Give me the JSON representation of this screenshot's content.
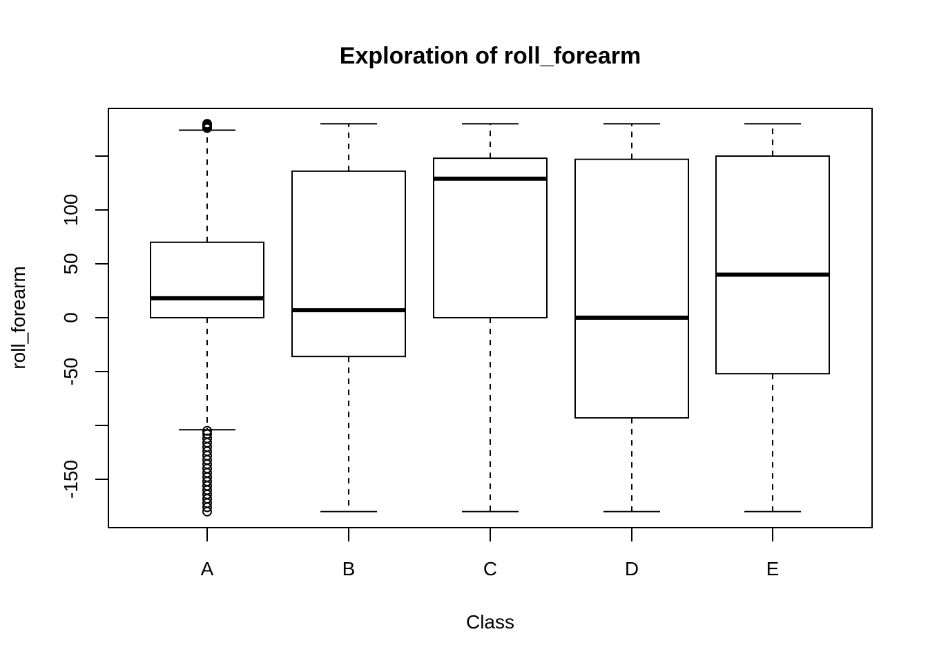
{
  "chart_data": {
    "type": "boxplot",
    "title": "Exploration of  roll_forearm",
    "xlabel": "Class",
    "ylabel": "roll_forearm",
    "ylim": [
      -180,
      180
    ],
    "y_ticks": [
      -150,
      -100,
      -50,
      0,
      50,
      100,
      150
    ],
    "y_tick_labels": [
      "-150",
      "",
      "-50",
      "0",
      "50",
      "100",
      ""
    ],
    "categories": [
      "A",
      "B",
      "C",
      "D",
      "E"
    ],
    "boxes": [
      {
        "category": "A",
        "whisker_low": -104,
        "q1": 0,
        "median": 18,
        "q3": 70,
        "whisker_high": 174,
        "outliers_high": [
          176,
          177,
          178,
          179,
          180
        ],
        "outliers_low": [
          -105,
          -108,
          -112,
          -116,
          -120,
          -124,
          -128,
          -132,
          -136,
          -140,
          -144,
          -148,
          -152,
          -156,
          -160,
          -164,
          -168,
          -172,
          -176,
          -180
        ]
      },
      {
        "category": "B",
        "whisker_low": -180,
        "q1": -36,
        "median": 7,
        "q3": 136,
        "whisker_high": 180,
        "outliers_high": [],
        "outliers_low": []
      },
      {
        "category": "C",
        "whisker_low": -180,
        "q1": 0,
        "median": 129,
        "q3": 148,
        "whisker_high": 180,
        "outliers_high": [],
        "outliers_low": []
      },
      {
        "category": "D",
        "whisker_low": -180,
        "q1": -93,
        "median": 0,
        "q3": 147,
        "whisker_high": 180,
        "outliers_high": [],
        "outliers_low": []
      },
      {
        "category": "E",
        "whisker_low": -180,
        "q1": -52,
        "median": 40,
        "q3": 150,
        "whisker_high": 180,
        "outliers_high": [],
        "outliers_low": []
      }
    ]
  }
}
